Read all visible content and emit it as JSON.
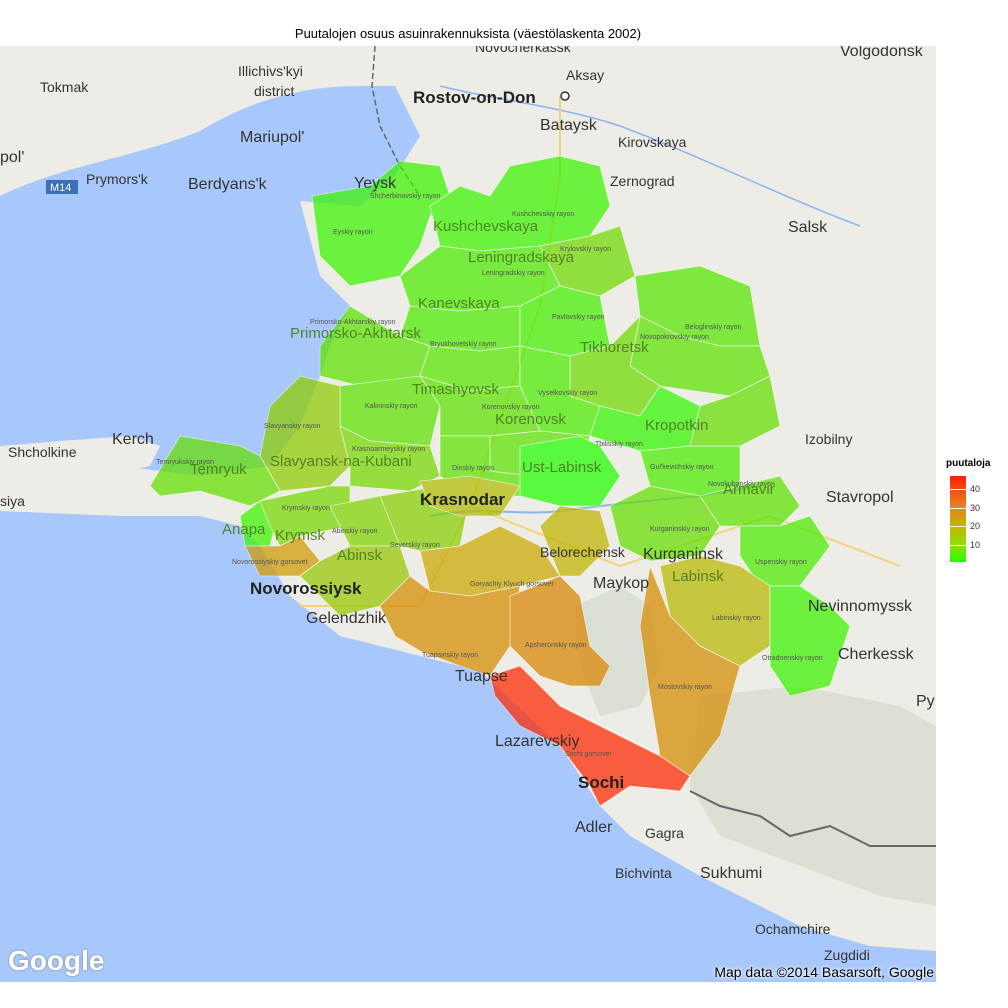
{
  "title": "Puutalojen osuus asuinrakennuksista (väestölaskenta 2002)",
  "legend": {
    "title": "puutaloja",
    "ticks": [
      "40",
      "30",
      "20",
      "10"
    ],
    "colors": {
      "high": "#ff2000",
      "mid": "#c8b000",
      "low": "#22ff00"
    }
  },
  "attribution": "Map data ©2014 Basarsoft, Google",
  "logo": "Google",
  "cities": {
    "rostov": "Rostov-on-Don",
    "aksay": "Aksay",
    "novocherkassk": "Novocherkassk",
    "volgodonsk": "Volgodonsk",
    "bataysk": "Bataysk",
    "kirovskaya": "Kirovskaya",
    "zernograd": "Zernograd",
    "salsk": "Salsk",
    "tokmak": "Tokmak",
    "illichivsk": "Illichivs'kyi",
    "district": "district",
    "mariupol": "Mariupol'",
    "pol": "pol'",
    "prymorsk": "Prymors'k",
    "berdyansk": "Berdyans'k",
    "m14": "M14",
    "yeysk": "Yeysk",
    "kerch": "Kerch",
    "shcholkine": "Shcholkine",
    "siya": "siya",
    "stavropol": "Stavropol",
    "izobilny": "Izobilny",
    "nevinnomyssk": "Nevinnomyssk",
    "cherkessk": "Cherkessk",
    "py": "Py",
    "maykop": "Maykop",
    "gelendzhik": "Gelendzhik",
    "lazarevskiy": "Lazarevskiy",
    "sochi": "Sochi",
    "adler": "Adler",
    "gagra": "Gagra",
    "bichvinta": "Bichvinta",
    "sukhumi": "Sukhumi",
    "ochamchire": "Ochamchire",
    "zugdidi": "Zugdidi"
  },
  "regions": [
    {
      "id": "yeysky",
      "label": "Eyskiy rayon",
      "value": 8
    },
    {
      "id": "shcherbinovsky",
      "label": "Shcherbinovskiy rayon",
      "value": 9
    },
    {
      "id": "kushchevsky",
      "label": "Kushchevskiy rayon",
      "value": 8
    },
    {
      "id": "starominsky",
      "label": "Starominskiy rayon",
      "value": 7
    },
    {
      "id": "krylovsky",
      "label": "Krylovskiy rayon",
      "value": 14
    },
    {
      "id": "leningradsky",
      "label": "Leningradskiy rayon",
      "value": 10
    },
    {
      "id": "kanevskoy",
      "label": "Kanevskoy rayon",
      "value": 10
    },
    {
      "id": "pavlovsky",
      "label": "Pavlovskiy rayon",
      "value": 9
    },
    {
      "id": "belogliny",
      "label": "Beloglinskiy rayon",
      "value": 11
    },
    {
      "id": "novopokrovsky",
      "label": "Novopokrovskiy rayon",
      "value": 12
    },
    {
      "id": "tikhoretsky",
      "label": "Tikhoretskiy rayon",
      "value": 14
    },
    {
      "id": "primorsko",
      "label": "Primorsko-Akhtarskiy rayon",
      "value": 12
    },
    {
      "id": "bryukhovetsky",
      "label": "Bryukhovetskiy rayon",
      "value": 11
    },
    {
      "id": "timashevsky",
      "label": "Timashevskiy rayon",
      "value": 12
    },
    {
      "id": "vyselkovsky",
      "label": "Vyselkovskiy rayon",
      "value": 10
    },
    {
      "id": "kalininsky",
      "label": "Kalininskiy rayon",
      "value": 12
    },
    {
      "id": "korenovsky",
      "label": "Korenovskiy rayon",
      "value": 12
    },
    {
      "id": "tbilissky",
      "label": "Tbilisskiy rayon",
      "value": 7
    },
    {
      "id": "gulkevichsky",
      "label": "Gul'kevichskiy rayon",
      "value": 10
    },
    {
      "id": "slavyansky",
      "label": "Slavyanskiy rayon",
      "value": 18
    },
    {
      "id": "krasnoarmeysky",
      "label": "Krasnoarmeyskiy rayon",
      "value": 15
    },
    {
      "id": "dinskoy",
      "label": "Dinskiy rayon",
      "value": 12
    },
    {
      "id": "ustlabinsky",
      "label": "Ust-Labinskiy rayon",
      "value": 5
    },
    {
      "id": "temryuksky",
      "label": "Temryukskiy rayon",
      "value": 13
    },
    {
      "id": "krymsky",
      "label": "Krymskiy rayon",
      "value": 15
    },
    {
      "id": "abinsky",
      "label": "Abinskiy rayon",
      "value": 16
    },
    {
      "id": "seversky",
      "label": "Severskiy rayon",
      "value": 17
    },
    {
      "id": "krasnodar",
      "label": "Krasnodar",
      "value": 22
    },
    {
      "id": "anapa",
      "label": "Anapa",
      "value": 8
    },
    {
      "id": "novorossiysk",
      "label": "Novorossiyskiy gorsovet",
      "value": 28
    },
    {
      "id": "gelendzhik",
      "label": "Gelendzhik gorsovet",
      "value": 19
    },
    {
      "id": "goryachiy",
      "label": "Goryachiy Klyuch gorsovet",
      "value": 26
    },
    {
      "id": "belorechensky",
      "label": "Belorechenskiy rayon",
      "value": 24
    },
    {
      "id": "kurganinsky",
      "label": "Kurganinskiy rayon",
      "value": 13
    },
    {
      "id": "novokubansky",
      "label": "Novokubanskiy rayon",
      "value": 12
    },
    {
      "id": "uspensky",
      "label": "Uspenskiy rayon",
      "value": 10
    },
    {
      "id": "labinsky",
      "label": "Labinskiy rayon",
      "value": 23
    },
    {
      "id": "otradnensky",
      "label": "Otradnenskiy rayon",
      "value": 8
    },
    {
      "id": "tuapsinsky",
      "label": "Tuapsinskiy rayon",
      "value": 30
    },
    {
      "id": "apsheronsky",
      "label": "Apsheronskiy rayon",
      "value": 31
    },
    {
      "id": "mostovsky",
      "label": "Mostovskiy rayon",
      "value": 30
    },
    {
      "id": "sochi",
      "label": "Sochi gorsovet",
      "value": 44
    }
  ],
  "overlay_towns": {
    "kushchevskaya": "Kushchevskaya",
    "leningradskaya": "Leningradskaya",
    "kanevskaya": "Kanevskaya",
    "tikhoretsk": "Tikhoretsk",
    "primorsko": "Primorsko-Akhtarsk",
    "timashyovsk": "Timashyovsk",
    "korenovsk": "Korenovsk",
    "kropotkin": "Kropotkin",
    "slavyansk": "Slavyansk-na-Kubani",
    "temryuk": "Temryuk",
    "ustlabinsk": "Ust-Labinsk",
    "krasnodar": "Krasnodar",
    "armavir": "Armavir",
    "anapa": "Anapa",
    "krymsk": "Krymsk",
    "abinsk": "Abinsk",
    "novorossiysk": "Novorossiysk",
    "belorechensk": "Belorechensk",
    "kurganinsk": "Kurganinsk",
    "labinsk": "Labinsk",
    "tuapse": "Tuapse"
  }
}
